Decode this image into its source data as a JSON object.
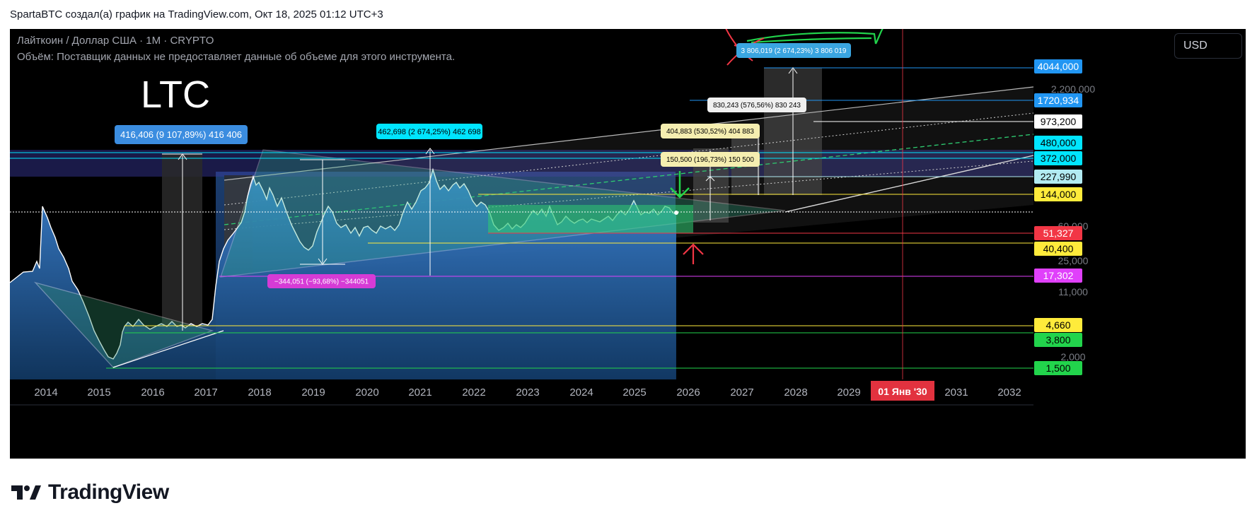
{
  "header": {
    "text": "SpartaBTC создал(а) график на TradingView.com, Окт 18, 2025 01:12 UTC+3"
  },
  "symbol_line": "Лайткоин / Доллар США · 1M · CRYPTO",
  "volume_line": "Объём: Поставщик данных не предоставляет данные об объеме для этого инструмента.",
  "ticker_label": "LTC",
  "currency_button": "USD",
  "brand": "TradingView",
  "colors": {
    "background": "#000000",
    "price_fill": "#2f6eb5",
    "range_box": "#2ecc71",
    "marker_red": "#f23645",
    "marker_green": "#22d44c"
  },
  "chart_data": {
    "type": "line",
    "title": "Лайткоин / Доллар США · 1M · CRYPTO",
    "scale": "log",
    "x_ticks": [
      "2014",
      "2015",
      "2016",
      "2017",
      "2018",
      "2019",
      "2020",
      "2021",
      "2022",
      "2023",
      "2024",
      "2025",
      "2026",
      "2027",
      "2028",
      "2029",
      "2031",
      "2032"
    ],
    "x_highlight": "01 Янв '30",
    "grey_y_ticks": [
      "2,200,000",
      "60,000",
      "25,000",
      "11,000",
      "2,000"
    ],
    "y_labels": [
      {
        "text": "4044,000",
        "bg": "#2196f3",
        "fg": "#ffffff"
      },
      {
        "text": "1720,934",
        "bg": "#2196f3",
        "fg": "#ffffff"
      },
      {
        "text": "973,200",
        "bg": "#ffffff",
        "fg": "#000000"
      },
      {
        "text": "480,000",
        "bg": "#00e5ff",
        "fg": "#000000"
      },
      {
        "text": "372,000",
        "bg": "#00e5ff",
        "fg": "#000000"
      },
      {
        "text": "227,990",
        "bg": "#b2ebf2",
        "fg": "#000000"
      },
      {
        "text": "144,000",
        "bg": "#ffeb3b",
        "fg": "#000000"
      },
      {
        "text": "51,327",
        "bg": "#f23645",
        "fg": "#ffffff"
      },
      {
        "text": "40,400",
        "bg": "#ffeb3b",
        "fg": "#000000"
      },
      {
        "text": "17,302",
        "bg": "#e040fb",
        "fg": "#ffffff"
      },
      {
        "text": "4,660",
        "bg": "#ffeb3b",
        "fg": "#000000"
      },
      {
        "text": "3,800",
        "bg": "#22d44c",
        "fg": "#000000"
      },
      {
        "text": "1,500",
        "bg": "#22d44c",
        "fg": "#000000"
      }
    ],
    "measure_labels": [
      {
        "text": "416,406 (9 107,89%) 416 406",
        "bg": "#3b8de0",
        "fg": "#ffffff"
      },
      {
        "text": "462,698 (2 674,25%) 462 698",
        "bg": "#00e5ff",
        "fg": "#000000"
      },
      {
        "text": "−344,051 (−93,68%) −344051",
        "bg": "#d63bd6",
        "fg": "#ffffff"
      },
      {
        "text": "3 806,019 (2 674,23%) 3 806 019",
        "bg": "#3aa5e0",
        "fg": "#ffffff"
      },
      {
        "text": "830,243 (576,56%) 830 243",
        "bg": "#f0f0f0",
        "fg": "#000000"
      },
      {
        "text": "404,883 (530,52%) 404 883",
        "bg": "#f5eeb0",
        "fg": "#000000"
      },
      {
        "text": "150,500 (196,73%) 150 500",
        "bg": "#f5eeb0",
        "fg": "#000000"
      }
    ],
    "series": [
      {
        "values": [
          [
            14,
            400
          ],
          [
            33,
            385
          ],
          [
            46,
            384
          ],
          [
            52,
            370
          ],
          [
            56,
            380
          ],
          [
            60,
            292
          ],
          [
            67,
            308
          ],
          [
            72,
            322
          ],
          [
            78,
            336
          ],
          [
            83,
            352
          ],
          [
            90,
            364
          ],
          [
            97,
            380
          ],
          [
            102,
            398
          ],
          [
            110,
            410
          ],
          [
            118,
            428
          ],
          [
            126,
            448
          ],
          [
            133,
            468
          ],
          [
            140,
            482
          ],
          [
            147,
            495
          ],
          [
            153,
            505
          ],
          [
            160,
            508
          ],
          [
            165,
            500
          ],
          [
            170,
            488
          ],
          [
            173,
            470
          ],
          [
            176,
            462
          ],
          [
            181,
            456
          ],
          [
            188,
            462
          ],
          [
            196,
            452
          ],
          [
            203,
            460
          ],
          [
            212,
            466
          ],
          [
            220,
            462
          ],
          [
            228,
            458
          ],
          [
            236,
            462
          ],
          [
            243,
            455
          ],
          [
            250,
            462
          ],
          [
            256,
            460
          ],
          [
            262,
            464
          ],
          [
            270,
            458
          ],
          [
            278,
            462
          ],
          [
            286,
            458
          ],
          [
            294,
            460
          ],
          [
            300,
            452
          ],
          [
            305,
            405
          ],
          [
            310,
            370
          ],
          [
            316,
            352
          ],
          [
            322,
            340
          ],
          [
            330,
            330
          ],
          [
            336,
            322
          ],
          [
            341,
            315
          ],
          [
            346,
            300
          ],
          [
            350,
            278
          ],
          [
            354,
            262
          ],
          [
            358,
            250
          ],
          [
            362,
            262
          ],
          [
            366,
            258
          ],
          [
            372,
            270
          ],
          [
            377,
            282
          ],
          [
            381,
            266
          ],
          [
            386,
            276
          ],
          [
            392,
            292
          ],
          [
            398,
            280
          ],
          [
            405,
            300
          ],
          [
            412,
            318
          ],
          [
            418,
            330
          ],
          [
            424,
            342
          ],
          [
            430,
            350
          ],
          [
            436,
            354
          ],
          [
            442,
            348
          ],
          [
            448,
            328
          ],
          [
            454,
            314
          ],
          [
            459,
            302
          ],
          [
            464,
            292
          ],
          [
            470,
            300
          ],
          [
            476,
            316
          ],
          [
            482,
            322
          ],
          [
            489,
            318
          ],
          [
            496,
            330
          ],
          [
            502,
            322
          ],
          [
            508,
            334
          ],
          [
            514,
            322
          ],
          [
            520,
            320
          ],
          [
            526,
            326
          ],
          [
            532,
            330
          ],
          [
            538,
            320
          ],
          [
            545,
            324
          ],
          [
            552,
            320
          ],
          [
            558,
            326
          ],
          [
            564,
            318
          ],
          [
            570,
            300
          ],
          [
            576,
            286
          ],
          [
            582,
            296
          ],
          [
            588,
            286
          ],
          [
            595,
            270
          ],
          [
            601,
            266
          ],
          [
            607,
            258
          ],
          [
            612,
            240
          ],
          [
            617,
            256
          ],
          [
            622,
            268
          ],
          [
            628,
            262
          ],
          [
            634,
            270
          ],
          [
            640,
            262
          ],
          [
            645,
            258
          ],
          [
            650,
            266
          ],
          [
            656,
            260
          ],
          [
            662,
            270
          ],
          [
            668,
            284
          ],
          [
            674,
            292
          ],
          [
            680,
            286
          ],
          [
            686,
            290
          ],
          [
            692,
            300
          ],
          [
            698,
            318
          ],
          [
            705,
            326
          ],
          [
            712,
            322
          ],
          [
            718,
            316
          ],
          [
            724,
            324
          ],
          [
            730,
            318
          ],
          [
            736,
            322
          ],
          [
            742,
            316
          ],
          [
            748,
            306
          ],
          [
            754,
            298
          ],
          [
            760,
            304
          ],
          [
            766,
            296
          ],
          [
            772,
            306
          ],
          [
            777,
            292
          ],
          [
            782,
            304
          ],
          [
            788,
            318
          ],
          [
            794,
            314
          ],
          [
            800,
            306
          ],
          [
            806,
            312
          ],
          [
            812,
            316
          ],
          [
            818,
            312
          ],
          [
            824,
            310
          ],
          [
            830,
            315
          ],
          [
            836,
            310
          ],
          [
            842,
            312
          ],
          [
            848,
            314
          ],
          [
            854,
            310
          ],
          [
            860,
            306
          ],
          [
            866,
            312
          ],
          [
            872,
            304
          ],
          [
            878,
            298
          ],
          [
            884,
            304
          ],
          [
            890,
            296
          ],
          [
            896,
            284
          ],
          [
            900,
            292
          ],
          [
            906,
            304
          ],
          [
            912,
            300
          ],
          [
            918,
            302
          ],
          [
            924,
            296
          ],
          [
            930,
            304
          ],
          [
            936,
            298
          ],
          [
            940,
            292
          ],
          [
            946,
            294
          ],
          [
            952,
            302
          ],
          [
            956,
            301
          ]
        ]
      }
    ]
  }
}
